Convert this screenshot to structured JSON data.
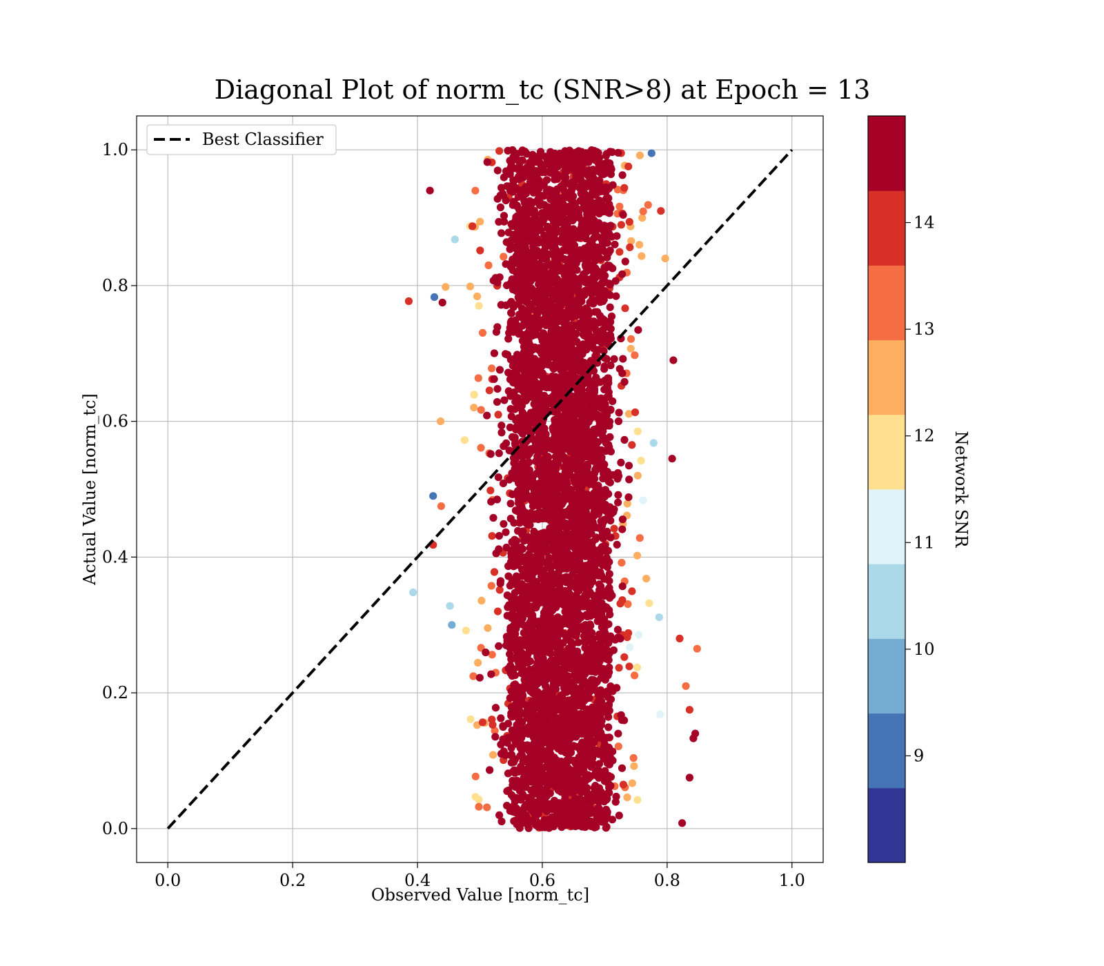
{
  "chart_data": {
    "type": "scatter",
    "title": "Diagonal Plot of norm_tc (SNR>8) at Epoch = 13",
    "xlabel": "Observed Value [norm_tc]",
    "ylabel": "Actual Value [norm_tc]",
    "xlim": [
      -0.05,
      1.05
    ],
    "ylim": [
      -0.05,
      1.05
    ],
    "xticks": [
      "0.0",
      "0.2",
      "0.4",
      "0.6",
      "0.8",
      "1.0"
    ],
    "yticks": [
      "0.0",
      "0.2",
      "0.4",
      "0.6",
      "0.8",
      "1.0"
    ],
    "grid": true,
    "legend": {
      "position": "upper-left",
      "entries": [
        "Best Classifier"
      ]
    },
    "reference_line": {
      "name": "Best Classifier",
      "x": [
        0.0,
        1.0
      ],
      "y": [
        0.0,
        1.0
      ],
      "style": "dashed",
      "color": "#000000"
    },
    "colorbar": {
      "label": "Network SNR",
      "range": [
        8.0,
        15.0
      ],
      "ticks": [
        "9",
        "10",
        "11",
        "12",
        "13",
        "14"
      ],
      "tick_values": [
        9,
        10,
        11,
        12,
        13,
        14
      ],
      "colors": [
        "#313695",
        "#4575b4",
        "#74add1",
        "#abd9e9",
        "#e0f3f8",
        "#fee090",
        "#fdae61",
        "#f46d43",
        "#d73027",
        "#a50026"
      ],
      "boundaries": [
        8.0,
        8.7,
        9.4,
        10.1,
        10.8,
        11.5,
        12.2,
        12.9,
        13.6,
        14.3,
        15.0
      ]
    },
    "scatter_summary": {
      "x_range": [
        0.39,
        0.85
      ],
      "y_range": [
        0.0,
        1.0
      ],
      "dense_core_x": [
        0.54,
        0.72
      ],
      "dense_core_snr": ">14.3"
    },
    "outliers": [
      {
        "x": 0.386,
        "y": 0.777,
        "snr": 14.0
      },
      {
        "x": 0.393,
        "y": 0.348,
        "snr": 10.5
      },
      {
        "x": 0.42,
        "y": 0.94,
        "snr": 14.8
      },
      {
        "x": 0.425,
        "y": 0.418,
        "snr": 14.0
      },
      {
        "x": 0.427,
        "y": 0.783,
        "snr": 9.0
      },
      {
        "x": 0.425,
        "y": 0.49,
        "snr": 9.0
      },
      {
        "x": 0.44,
        "y": 0.775,
        "snr": 14.8
      },
      {
        "x": 0.438,
        "y": 0.475,
        "snr": 13.2
      },
      {
        "x": 0.437,
        "y": 0.6,
        "snr": 12.5
      },
      {
        "x": 0.445,
        "y": 0.798,
        "snr": 12.7
      },
      {
        "x": 0.452,
        "y": 0.328,
        "snr": 10.5
      },
      {
        "x": 0.455,
        "y": 0.3,
        "snr": 9.4
      },
      {
        "x": 0.46,
        "y": 0.868,
        "snr": 10.5
      },
      {
        "x": 0.82,
        "y": 0.28,
        "snr": 14.0
      },
      {
        "x": 0.848,
        "y": 0.265,
        "snr": 13.2
      },
      {
        "x": 0.83,
        "y": 0.21,
        "snr": 13.2
      },
      {
        "x": 0.836,
        "y": 0.175,
        "snr": 14.0
      },
      {
        "x": 0.845,
        "y": 0.14,
        "snr": 14.8
      },
      {
        "x": 0.842,
        "y": 0.133,
        "snr": 14.8
      },
      {
        "x": 0.836,
        "y": 0.075,
        "snr": 14.8
      },
      {
        "x": 0.824,
        "y": 0.008,
        "snr": 14.8
      },
      {
        "x": 0.81,
        "y": 0.69,
        "snr": 14.8
      },
      {
        "x": 0.808,
        "y": 0.545,
        "snr": 14.8
      },
      {
        "x": 0.797,
        "y": 0.84,
        "snr": 12.5
      },
      {
        "x": 0.79,
        "y": 0.91,
        "snr": 14.0
      },
      {
        "x": 0.775,
        "y": 0.995,
        "snr": 9.0
      }
    ]
  }
}
